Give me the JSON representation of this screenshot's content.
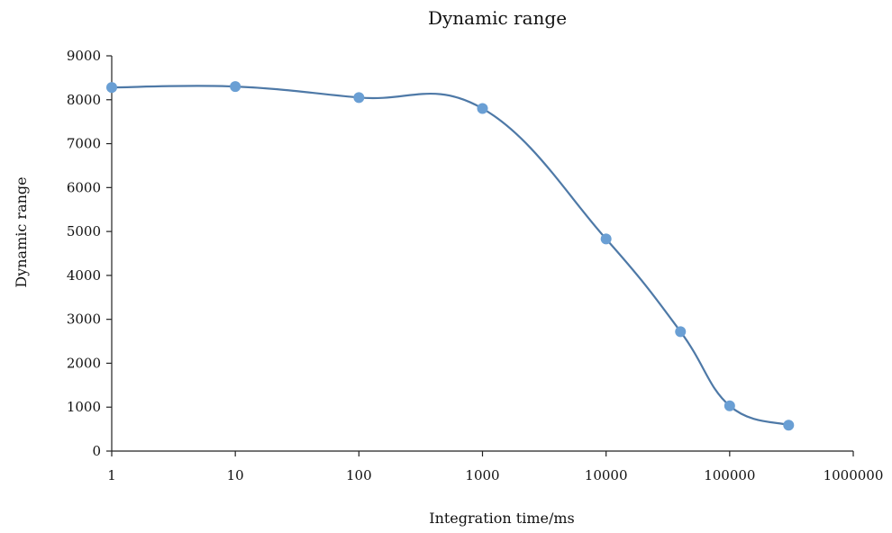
{
  "chart_data": {
    "type": "line",
    "title": "Dynamic range",
    "xlabel": "Integration time/ms",
    "ylabel": "Dynamic range",
    "x_scale": "log",
    "xlim": [
      1,
      1000000
    ],
    "ylim": [
      0,
      9000
    ],
    "x_ticks": [
      "1",
      "10",
      "100",
      "1000",
      "10000",
      "100000",
      "1000000"
    ],
    "y_ticks": [
      "0",
      "1000",
      "2000",
      "3000",
      "4000",
      "5000",
      "6000",
      "7000",
      "8000",
      "9000"
    ],
    "grid": false,
    "legend": "none",
    "series": [
      {
        "color": "#4e79a7",
        "marker_color": "#6a9fd4",
        "x": [
          1,
          10,
          100,
          1000,
          10000,
          40000,
          100000,
          300000
        ],
        "y": [
          8280,
          8300,
          8050,
          7800,
          4830,
          2720,
          1030,
          590
        ]
      }
    ]
  }
}
